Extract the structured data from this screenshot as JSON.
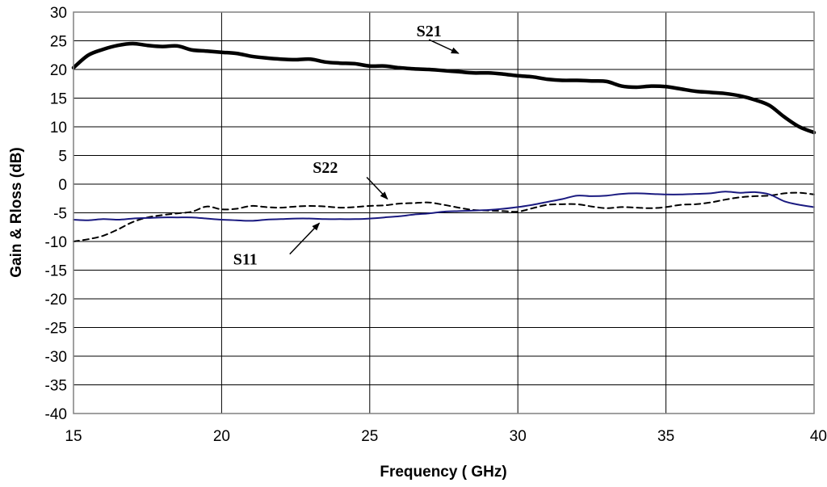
{
  "chart_data": {
    "type": "line",
    "title": "",
    "xlabel": "Frequency ( GHz)",
    "ylabel": "Gain & Rloss (dB)",
    "xlim": [
      15,
      40
    ],
    "ylim": [
      -40,
      30
    ],
    "x_ticks": [
      15,
      20,
      25,
      30,
      35,
      40
    ],
    "y_ticks": [
      -40,
      -35,
      -30,
      -25,
      -20,
      -15,
      -10,
      -5,
      0,
      5,
      10,
      15,
      20,
      25,
      30
    ],
    "grid": "horizontal and vertical",
    "legend": "none",
    "series": [
      {
        "name": "S21",
        "color": "#000000",
        "style": "solid-thick",
        "points": [
          [
            15,
            20.3
          ],
          [
            15.5,
            22.5
          ],
          [
            16,
            23.5
          ],
          [
            16.5,
            24.2
          ],
          [
            17,
            24.5
          ],
          [
            17.5,
            24.2
          ],
          [
            18,
            24.0
          ],
          [
            18.5,
            24.1
          ],
          [
            19,
            23.4
          ],
          [
            19.5,
            23.2
          ],
          [
            20,
            23.0
          ],
          [
            20.5,
            22.8
          ],
          [
            21,
            22.3
          ],
          [
            21.5,
            22.0
          ],
          [
            22,
            21.8
          ],
          [
            22.5,
            21.7
          ],
          [
            23,
            21.8
          ],
          [
            23.5,
            21.3
          ],
          [
            24,
            21.1
          ],
          [
            24.5,
            21.0
          ],
          [
            25,
            20.6
          ],
          [
            25.5,
            20.6
          ],
          [
            26,
            20.3
          ],
          [
            26.5,
            20.1
          ],
          [
            27,
            20.0
          ],
          [
            27.5,
            19.8
          ],
          [
            28,
            19.6
          ],
          [
            28.5,
            19.4
          ],
          [
            29,
            19.4
          ],
          [
            29.5,
            19.2
          ],
          [
            30,
            18.9
          ],
          [
            30.5,
            18.7
          ],
          [
            31,
            18.3
          ],
          [
            31.5,
            18.1
          ],
          [
            32,
            18.1
          ],
          [
            32.5,
            18.0
          ],
          [
            33,
            17.9
          ],
          [
            33.5,
            17.1
          ],
          [
            34,
            16.9
          ],
          [
            34.5,
            17.1
          ],
          [
            35,
            17.0
          ],
          [
            35.5,
            16.6
          ],
          [
            36,
            16.2
          ],
          [
            36.5,
            16.0
          ],
          [
            37,
            15.8
          ],
          [
            37.5,
            15.4
          ],
          [
            38,
            14.7
          ],
          [
            38.5,
            13.7
          ],
          [
            39,
            11.7
          ],
          [
            39.5,
            10.0
          ],
          [
            40,
            9.0
          ]
        ]
      },
      {
        "name": "S22",
        "color": "#000000",
        "style": "dashed",
        "points": [
          [
            15,
            -10.0
          ],
          [
            15.5,
            -9.6
          ],
          [
            16,
            -9.0
          ],
          [
            16.5,
            -7.9
          ],
          [
            17,
            -6.6
          ],
          [
            17.5,
            -5.8
          ],
          [
            18,
            -5.4
          ],
          [
            18.5,
            -5.1
          ],
          [
            19,
            -4.8
          ],
          [
            19.5,
            -3.9
          ],
          [
            20,
            -4.4
          ],
          [
            20.5,
            -4.3
          ],
          [
            21,
            -3.8
          ],
          [
            21.5,
            -4.0
          ],
          [
            22,
            -4.1
          ],
          [
            22.5,
            -3.9
          ],
          [
            23,
            -3.8
          ],
          [
            23.5,
            -3.9
          ],
          [
            24,
            -4.1
          ],
          [
            24.5,
            -4.0
          ],
          [
            25,
            -3.8
          ],
          [
            25.5,
            -3.7
          ],
          [
            26,
            -3.4
          ],
          [
            26.5,
            -3.3
          ],
          [
            27,
            -3.2
          ],
          [
            27.5,
            -3.6
          ],
          [
            28,
            -4.1
          ],
          [
            28.5,
            -4.5
          ],
          [
            29,
            -4.6
          ],
          [
            29.5,
            -4.7
          ],
          [
            30,
            -4.8
          ],
          [
            30.5,
            -4.2
          ],
          [
            31,
            -3.6
          ],
          [
            31.5,
            -3.5
          ],
          [
            32,
            -3.5
          ],
          [
            32.5,
            -3.9
          ],
          [
            33,
            -4.2
          ],
          [
            33.5,
            -4.0
          ],
          [
            34,
            -4.1
          ],
          [
            34.5,
            -4.2
          ],
          [
            35,
            -4.0
          ],
          [
            35.5,
            -3.6
          ],
          [
            36,
            -3.5
          ],
          [
            36.5,
            -3.2
          ],
          [
            37,
            -2.7
          ],
          [
            37.5,
            -2.3
          ],
          [
            38,
            -2.1
          ],
          [
            38.5,
            -2.0
          ],
          [
            39,
            -1.6
          ],
          [
            39.5,
            -1.5
          ],
          [
            40,
            -1.8
          ]
        ]
      },
      {
        "name": "S11",
        "color": "#1a1a80",
        "style": "solid",
        "points": [
          [
            15,
            -6.2
          ],
          [
            15.5,
            -6.3
          ],
          [
            16,
            -6.1
          ],
          [
            16.5,
            -6.2
          ],
          [
            17,
            -6.0
          ],
          [
            17.5,
            -5.9
          ],
          [
            18,
            -5.8
          ],
          [
            18.5,
            -5.8
          ],
          [
            19,
            -5.8
          ],
          [
            19.5,
            -6.0
          ],
          [
            20,
            -6.2
          ],
          [
            20.5,
            -6.3
          ],
          [
            21,
            -6.4
          ],
          [
            21.5,
            -6.2
          ],
          [
            22,
            -6.1
          ],
          [
            22.5,
            -6.0
          ],
          [
            23,
            -6.0
          ],
          [
            23.5,
            -6.1
          ],
          [
            24,
            -6.1
          ],
          [
            24.5,
            -6.1
          ],
          [
            25,
            -6.0
          ],
          [
            25.5,
            -5.8
          ],
          [
            26,
            -5.6
          ],
          [
            26.5,
            -5.3
          ],
          [
            27,
            -5.1
          ],
          [
            27.5,
            -4.8
          ],
          [
            28,
            -4.7
          ],
          [
            28.5,
            -4.6
          ],
          [
            29,
            -4.5
          ],
          [
            29.5,
            -4.3
          ],
          [
            30,
            -4.0
          ],
          [
            30.5,
            -3.6
          ],
          [
            31,
            -3.1
          ],
          [
            31.5,
            -2.6
          ],
          [
            32,
            -2.0
          ],
          [
            32.5,
            -2.1
          ],
          [
            33,
            -2.0
          ],
          [
            33.5,
            -1.7
          ],
          [
            34,
            -1.6
          ],
          [
            34.5,
            -1.7
          ],
          [
            35,
            -1.8
          ],
          [
            35.5,
            -1.8
          ],
          [
            36,
            -1.7
          ],
          [
            36.5,
            -1.6
          ],
          [
            37,
            -1.3
          ],
          [
            37.5,
            -1.5
          ],
          [
            38,
            -1.4
          ],
          [
            38.5,
            -1.8
          ],
          [
            39,
            -3.0
          ],
          [
            39.5,
            -3.6
          ],
          [
            40,
            -4.0
          ]
        ]
      }
    ],
    "annotations": [
      {
        "text": "S21",
        "series": "S21",
        "label_at": [
          27.0,
          25.8
        ],
        "arrow_from": [
          27.0,
          25.2
        ],
        "arrow_to": [
          28.0,
          22.8
        ]
      },
      {
        "text": "S22",
        "series": "S22",
        "label_at": [
          23.5,
          2.0
        ],
        "arrow_from": [
          24.9,
          1.2
        ],
        "arrow_to": [
          25.6,
          -2.6
        ]
      },
      {
        "text": "S11",
        "series": "S11",
        "label_at": [
          20.8,
          -14.0
        ],
        "arrow_from": [
          22.3,
          -12.2
        ],
        "arrow_to": [
          23.3,
          -6.8
        ]
      }
    ]
  }
}
